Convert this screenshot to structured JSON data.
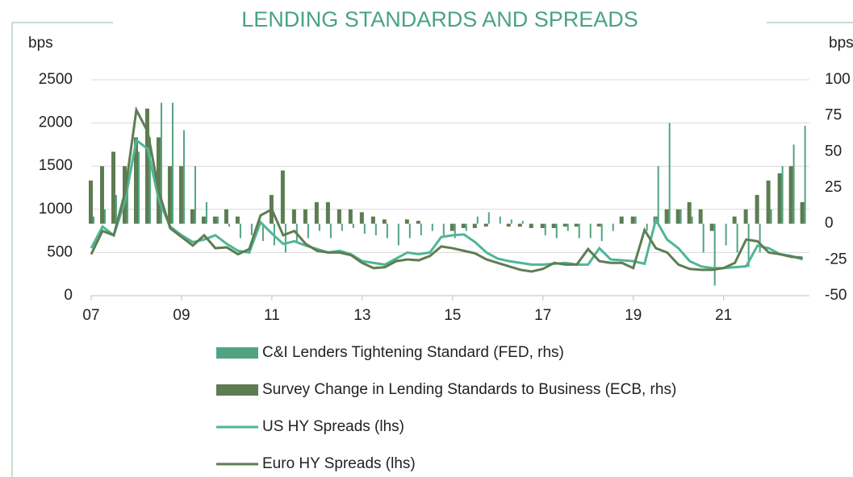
{
  "chart_data": {
    "type": "bar",
    "title": "LENDING STANDARDS AND SPREADS",
    "ylabel": "bps",
    "y2label": "bps",
    "x": [
      2007,
      2007.25,
      2007.5,
      2007.75,
      2008,
      2008.25,
      2008.5,
      2008.75,
      2009,
      2009.25,
      2009.5,
      2009.75,
      2010,
      2010.25,
      2010.5,
      2010.75,
      2011,
      2011.25,
      2011.5,
      2011.75,
      2012,
      2012.25,
      2012.5,
      2012.75,
      2013,
      2013.25,
      2013.5,
      2013.75,
      2014,
      2014.25,
      2014.5,
      2014.75,
      2015,
      2015.25,
      2015.5,
      2015.75,
      2016,
      2016.25,
      2016.5,
      2016.75,
      2017,
      2017.25,
      2017.5,
      2017.75,
      2018,
      2018.25,
      2018.5,
      2018.75,
      2019,
      2019.25,
      2019.5,
      2019.75,
      2020,
      2020.25,
      2020.5,
      2020.75,
      2021,
      2021.25,
      2021.5,
      2021.75,
      2022,
      2022.25,
      2022.5,
      2022.75
    ],
    "xlim": [
      2007,
      2022.9
    ],
    "xticks": [
      {
        "value": 2007,
        "label": "07"
      },
      {
        "value": 2009,
        "label": "09"
      },
      {
        "value": 2011,
        "label": "11"
      },
      {
        "value": 2013,
        "label": "13"
      },
      {
        "value": 2015,
        "label": "15"
      },
      {
        "value": 2017,
        "label": "17"
      },
      {
        "value": 2019,
        "label": "19"
      },
      {
        "value": 2021,
        "label": "21"
      }
    ],
    "ylim": [
      0,
      2500
    ],
    "yticks": [
      0,
      500,
      1000,
      1500,
      2000,
      2500
    ],
    "y2lim": [
      -50,
      100
    ],
    "y2ticks": [
      -50,
      -25,
      0,
      25,
      50,
      75,
      100
    ],
    "grid": true,
    "series": [
      {
        "name": "C&I Lenders Tightening Standard (FED, rhs)",
        "type": "bar",
        "axis": "y2",
        "color": "#52a382",
        "values": [
          5,
          10,
          20,
          30,
          50,
          60,
          84,
          84,
          65,
          40,
          15,
          5,
          -2,
          -10,
          -8,
          -12,
          -15,
          -20,
          -12,
          -10,
          -5,
          -10,
          -5,
          -3,
          -7,
          -8,
          -10,
          -15,
          -10,
          -8,
          -5,
          -8,
          -10,
          -5,
          5,
          8,
          5,
          3,
          2,
          0,
          -8,
          -10,
          -5,
          -10,
          -10,
          -12,
          -5,
          0,
          5,
          -5,
          40,
          70,
          10,
          5,
          -20,
          -43,
          -15,
          -20,
          -30,
          -20,
          10,
          40,
          55,
          68
        ]
      },
      {
        "name": "Survey Change in Lending Standards to Business (ECB, rhs)",
        "type": "bar",
        "axis": "y2",
        "color": "#5d7c52",
        "values": [
          30,
          40,
          50,
          40,
          60,
          80,
          60,
          40,
          40,
          10,
          5,
          5,
          10,
          5,
          0,
          0,
          20,
          37,
          10,
          10,
          15,
          15,
          10,
          10,
          8,
          5,
          3,
          0,
          3,
          2,
          0,
          0,
          -5,
          -3,
          -3,
          -2,
          0,
          -2,
          -2,
          -3,
          -3,
          -3,
          -2,
          -2,
          0,
          -2,
          0,
          5,
          5,
          0,
          5,
          10,
          10,
          15,
          10,
          -5,
          0,
          5,
          10,
          20,
          30,
          35,
          40,
          15
        ]
      },
      {
        "name": "US HY Spreads (lhs)",
        "type": "line",
        "color": "#4fb596",
        "values": [
          550,
          800,
          700,
          1100,
          1800,
          1700,
          1100,
          800,
          700,
          620,
          650,
          700,
          600,
          520,
          500,
          850,
          720,
          600,
          630,
          580,
          540,
          500,
          520,
          480,
          400,
          380,
          360,
          430,
          500,
          480,
          500,
          680,
          700,
          710,
          620,
          500,
          430,
          400,
          380,
          360,
          360,
          370,
          380,
          360,
          360,
          550,
          420,
          410,
          400,
          370,
          880,
          650,
          550,
          400,
          340,
          320,
          320,
          330,
          340,
          580,
          550,
          480,
          460,
          420
        ]
      },
      {
        "name": "Euro HY Spreads (lhs)",
        "type": "line",
        "color": "#5e7d52",
        "values": [
          480,
          750,
          700,
          1200,
          2150,
          1900,
          1200,
          780,
          680,
          580,
          700,
          550,
          560,
          480,
          540,
          930,
          1000,
          700,
          750,
          600,
          520,
          500,
          500,
          470,
          380,
          320,
          330,
          400,
          420,
          410,
          460,
          570,
          550,
          520,
          490,
          420,
          380,
          340,
          300,
          280,
          310,
          380,
          360,
          360,
          540,
          400,
          380,
          380,
          320,
          760,
          550,
          500,
          360,
          310,
          300,
          300,
          320,
          380,
          650,
          630,
          500,
          480,
          450,
          440
        ]
      }
    ]
  }
}
